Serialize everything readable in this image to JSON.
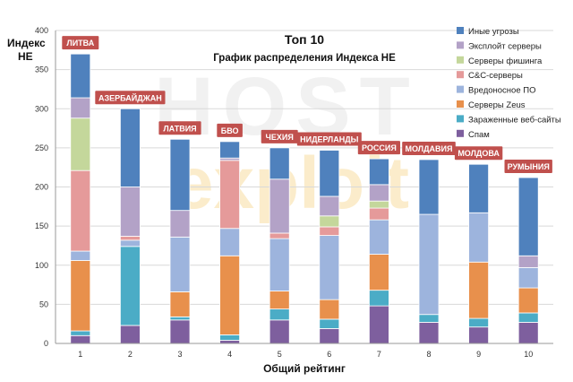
{
  "watermark": {
    "line1": "HOST",
    "line2": "exploit"
  },
  "chart_data": {
    "type": "bar",
    "stacked": true,
    "title": "Топ 10",
    "subtitle": "График распределения Индекса НЕ",
    "xlabel": "Общий рейтинг",
    "ylabel": "Индекс НЕ",
    "ylim": [
      0,
      400
    ],
    "yticks": [
      0,
      50,
      100,
      150,
      200,
      250,
      300,
      350,
      400
    ],
    "grid": true,
    "legend_position": "right",
    "categories": [
      "1",
      "2",
      "3",
      "4",
      "5",
      "6",
      "7",
      "8",
      "9",
      "10"
    ],
    "country_labels": [
      "ЛИТВА",
      "АЗЕРБАЙДЖАН",
      "ЛАТВИЯ",
      "БВО",
      "ЧЕХИЯ",
      "НИДЕРЛАНДЫ",
      "РОССИЯ",
      "МОЛДАВИЯ",
      "МОЛДОВА",
      "РУМЫНИЯ"
    ],
    "series": [
      {
        "name": "Спам",
        "color": "#7E5F9E",
        "values": [
          10,
          23,
          30,
          4,
          30,
          19,
          48,
          27,
          21,
          27
        ]
      },
      {
        "name": "Зараженные веб-сайты",
        "color": "#4BACC6",
        "values": [
          6,
          101,
          4,
          7,
          14,
          12,
          20,
          10,
          11,
          12
        ]
      },
      {
        "name": "Серверы Zeus",
        "color": "#E8904C",
        "values": [
          90,
          0,
          32,
          101,
          23,
          25,
          46,
          0,
          72,
          32
        ]
      },
      {
        "name": "Вредоносное ПО",
        "color": "#9DB4DD",
        "values": [
          12,
          8,
          70,
          35,
          67,
          82,
          44,
          128,
          63,
          26
        ]
      },
      {
        "name": "C&C-серверы",
        "color": "#E59A9A",
        "values": [
          103,
          5,
          0,
          87,
          7,
          11,
          15,
          0,
          0,
          0
        ]
      },
      {
        "name": "Серверы фишинга",
        "color": "#C4D79B",
        "values": [
          67,
          0,
          0,
          0,
          0,
          14,
          9,
          0,
          0,
          0
        ]
      },
      {
        "name": "Эксплойт серверы",
        "color": "#B3A2C7",
        "values": [
          26,
          63,
          34,
          3,
          69,
          25,
          21,
          0,
          0,
          15
        ]
      },
      {
        "name": "Иные угрозы",
        "color": "#4F81BD",
        "values": [
          56,
          100,
          91,
          21,
          40,
          59,
          33,
          70,
          62,
          100
        ]
      }
    ]
  }
}
